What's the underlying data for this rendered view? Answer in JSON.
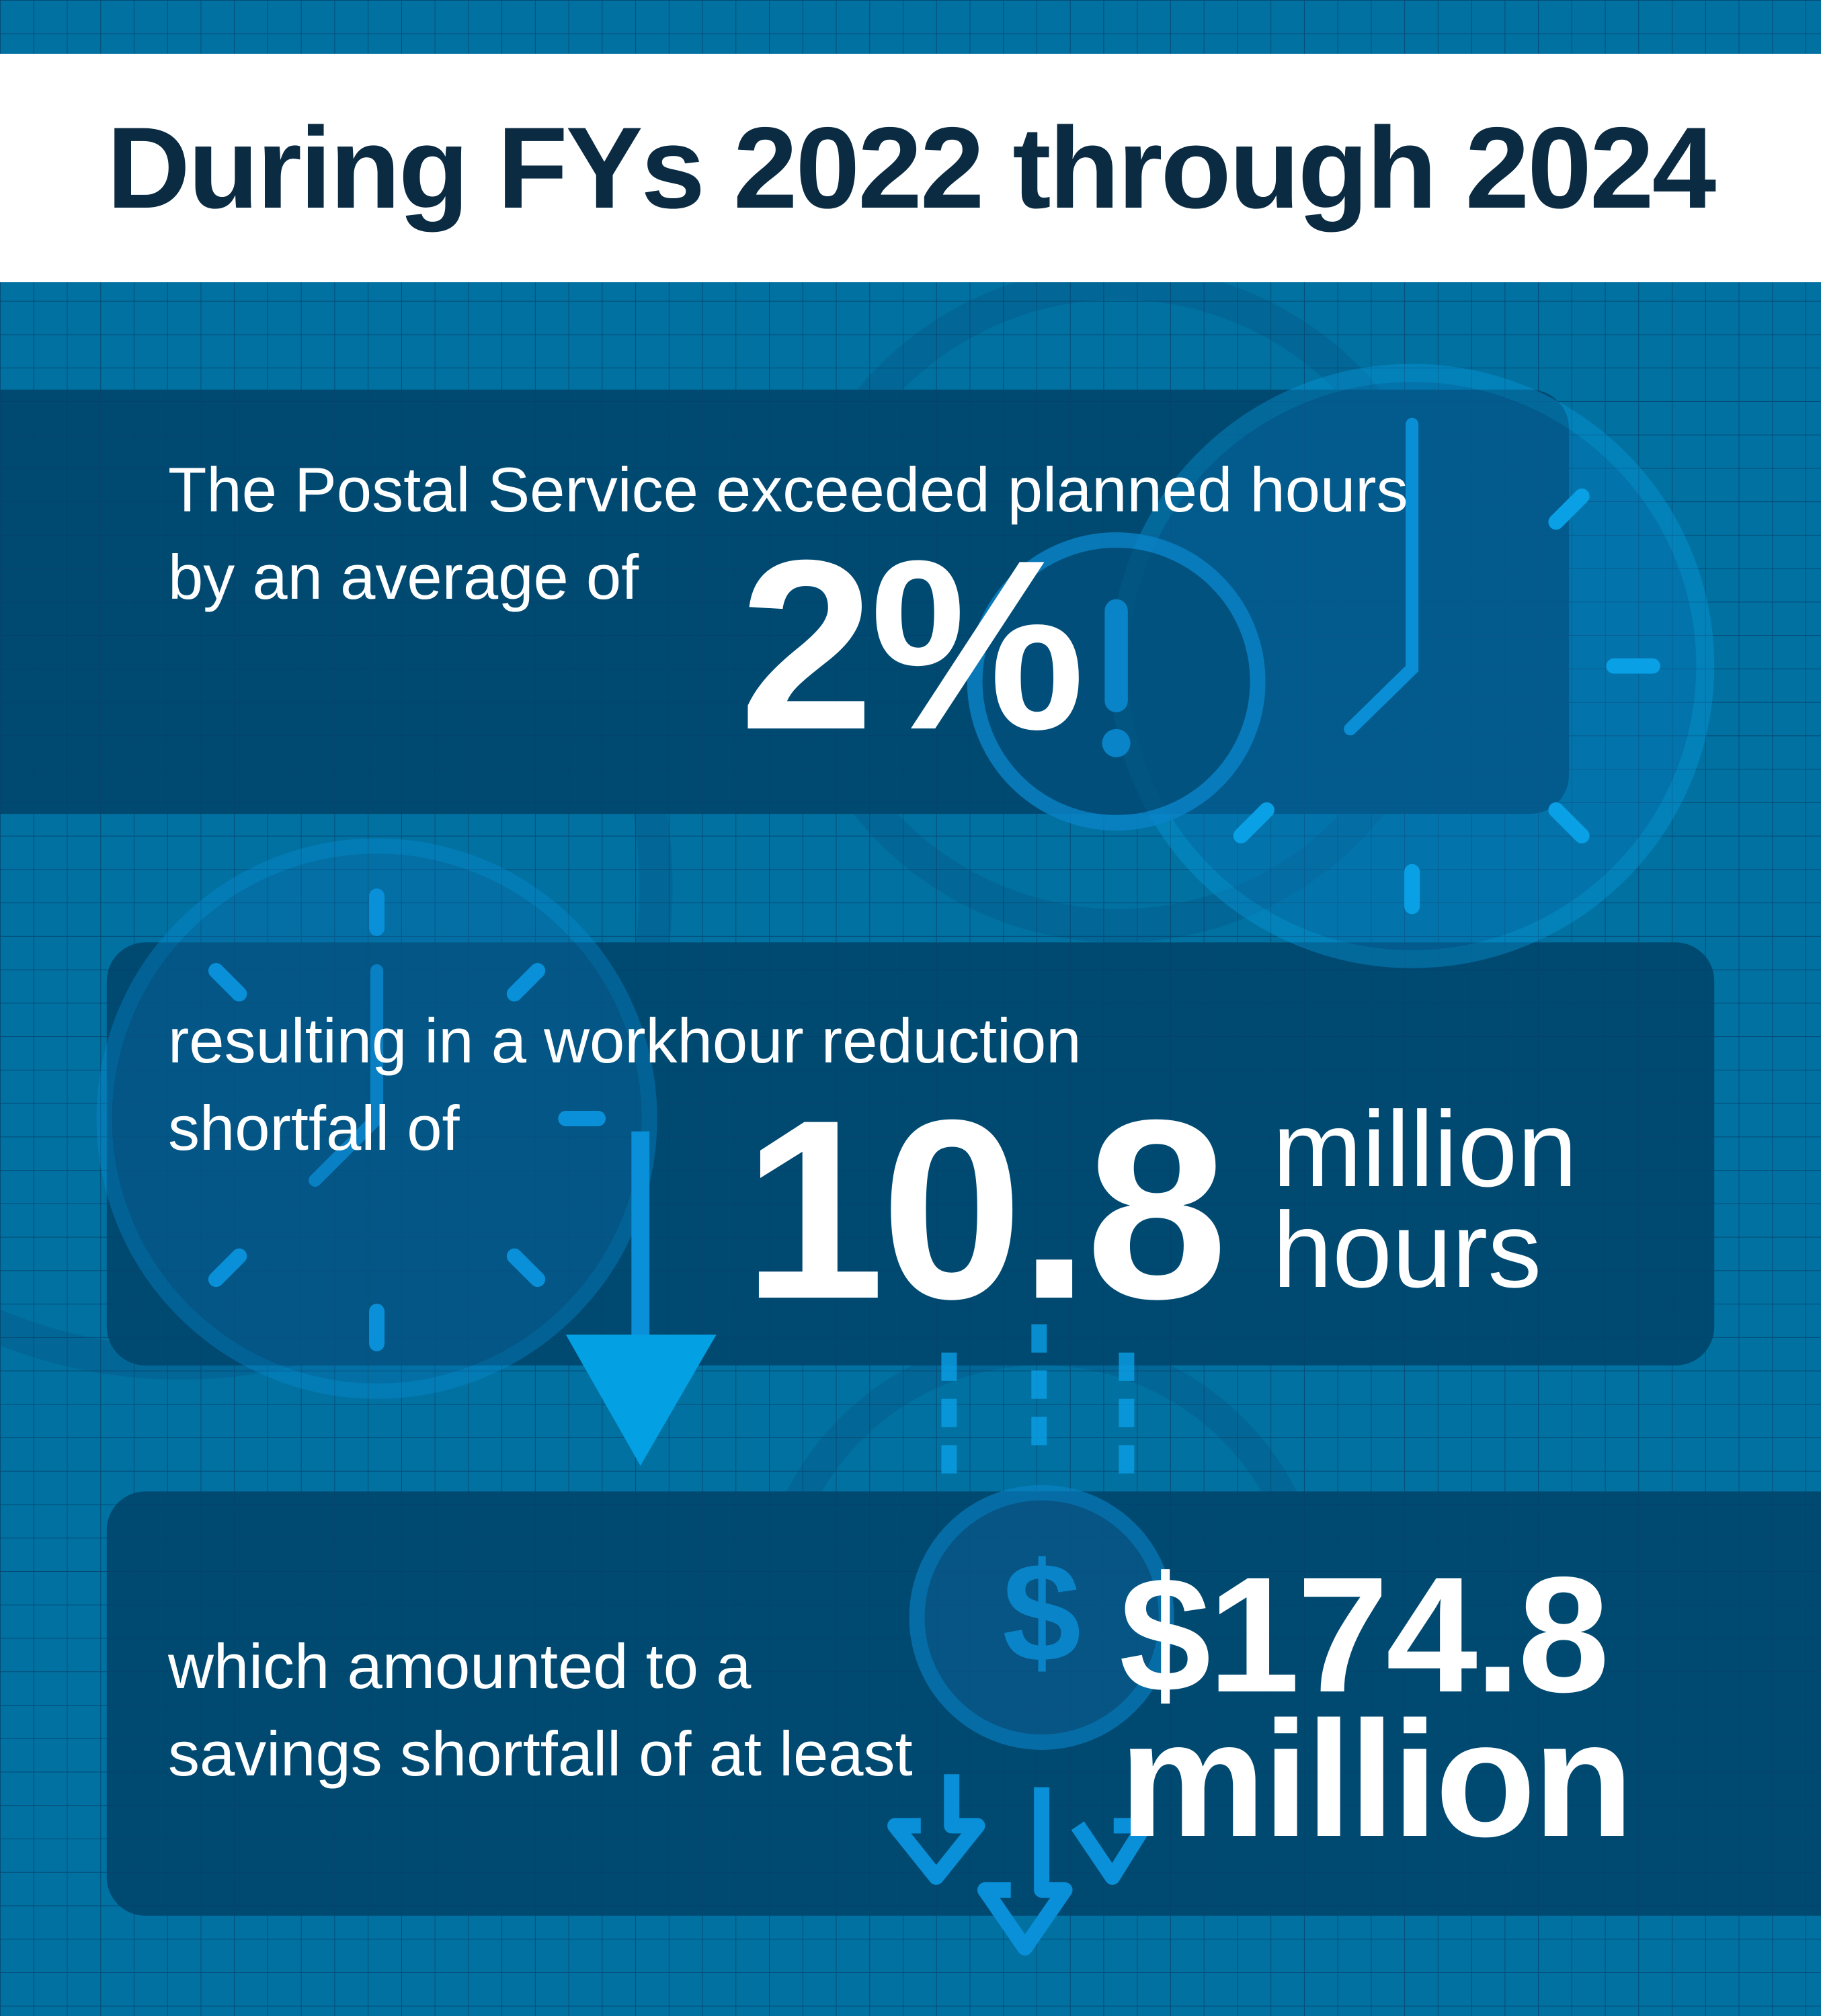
{
  "header": {
    "title": "During FYs 2022 through 2024"
  },
  "panel_1": {
    "line_1": "The Postal Service exceeded planned hours",
    "line_2": "by an average of",
    "value": "2%"
  },
  "panel_2": {
    "line_1": "resulting in a workhour reduction",
    "line_2": "shortfall of",
    "value": "10.8",
    "unit_1": "million",
    "unit_2": "hours"
  },
  "panel_3": {
    "line_1": "which amounted to a",
    "line_2": "savings shortfall of at least",
    "value": "$174.8",
    "unit": "million"
  },
  "colors": {
    "background": "#0071a1",
    "panel": "#004a72",
    "accent": "#0aa0e6",
    "title": "#0b2b42"
  },
  "icons": [
    "clock-icon",
    "alert-icon",
    "down-arrow-icon",
    "dollar-coin-icon"
  ]
}
